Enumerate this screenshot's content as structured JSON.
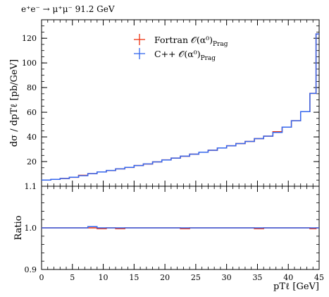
{
  "header": {
    "process": "e⁺e⁻ → μ⁺μ⁻ 91.2 GeV"
  },
  "legend": [
    {
      "label": "Fortran 𝒪(α⁰)",
      "sub": "Prag",
      "color": "#ee3311"
    },
    {
      "label": "C++ 𝒪(α⁰)",
      "sub": "Prag",
      "color": "#3366ee"
    }
  ],
  "chart_data": [
    {
      "type": "line",
      "panel": "main",
      "ylabel": "dσ / dpTℓ [pb/GeV]",
      "ylim": [
        0,
        135
      ],
      "xlim": [
        0,
        45
      ],
      "yticks": [
        "20",
        "40",
        "60",
        "80",
        "100",
        "120"
      ],
      "bin_edges": [
        0,
        1.5,
        3,
        4.5,
        6,
        7.5,
        9,
        10.5,
        12,
        13.5,
        15,
        16.5,
        18,
        19.5,
        21,
        22.5,
        24,
        25.5,
        27,
        28.5,
        30,
        31.5,
        33,
        34.5,
        36,
        37.5,
        39,
        40.5,
        42,
        43.5,
        44.5,
        45
      ],
      "series": [
        {
          "name": "Fortran 𝒪(α⁰) Prag",
          "color": "#ee3311",
          "values": [
            5.0,
            5.6,
            6.3,
            7.2,
            8.9,
            10.2,
            11.6,
            12.7,
            14.1,
            15.2,
            16.8,
            18.0,
            19.7,
            21.4,
            22.8,
            24.3,
            26.0,
            27.6,
            29.2,
            31.0,
            32.8,
            34.6,
            36.3,
            38.6,
            40.6,
            44.2,
            47.9,
            53.1,
            60.5,
            75.3,
            123.5
          ]
        },
        {
          "name": "C++ 𝒪(α⁰) Prag",
          "color": "#3366ee",
          "values": [
            5.0,
            5.6,
            6.3,
            7.3,
            8.6,
            10.2,
            11.6,
            12.8,
            14.1,
            15.3,
            16.8,
            18.1,
            19.7,
            21.3,
            22.8,
            24.4,
            26.0,
            27.6,
            29.2,
            31.0,
            32.8,
            34.6,
            36.3,
            38.6,
            40.6,
            43.6,
            47.9,
            53.1,
            60.5,
            75.3,
            123.5
          ]
        }
      ]
    },
    {
      "type": "line",
      "panel": "ratio",
      "xlabel": "pTℓ [GeV]",
      "ylabel": "Ratio",
      "ylim": [
        0.9,
        1.1
      ],
      "xlim": [
        0,
        45
      ],
      "yticks": [
        "0.9",
        "1.0"
      ],
      "xticks": [
        "0",
        "5",
        "10",
        "15",
        "20",
        "25",
        "30",
        "35",
        "40",
        "45"
      ],
      "top_label": "1.1",
      "bin_edges": [
        0,
        1.5,
        3,
        4.5,
        6,
        7.5,
        9,
        10.5,
        12,
        13.5,
        15,
        16.5,
        18,
        19.5,
        21,
        22.5,
        24,
        25.5,
        27,
        28.5,
        30,
        31.5,
        33,
        34.5,
        36,
        37.5,
        39,
        40.5,
        42,
        43.5,
        44.5,
        45
      ],
      "series": [
        {
          "name": "Fortran 𝒪(α⁰) Prag",
          "color": "#ee3311",
          "values": [
            1.0,
            1.0,
            1.0,
            1.0,
            1.0,
            1.0,
            0.998,
            1.0,
            0.998,
            1.0,
            1.0,
            1.0,
            1.0,
            1.0,
            1.0,
            0.998,
            1.0,
            1.0,
            1.0,
            1.0,
            1.0,
            1.0,
            1.0,
            0.998,
            1.0,
            1.0,
            1.0,
            1.0,
            1.0,
            0.998,
            1.0
          ]
        },
        {
          "name": "C++ 𝒪(α⁰) Prag",
          "color": "#3366ee",
          "values": [
            1.0,
            1.0,
            1.0,
            1.0,
            1.0,
            1.003,
            1.0,
            1.0,
            1.0,
            1.0,
            1.0,
            1.0,
            1.0,
            1.0,
            1.0,
            1.0,
            1.0,
            1.0,
            1.0,
            1.0,
            1.0,
            1.0,
            1.0,
            1.0,
            1.0,
            1.0,
            1.0,
            1.0,
            1.0,
            1.0,
            1.0
          ]
        }
      ]
    }
  ]
}
